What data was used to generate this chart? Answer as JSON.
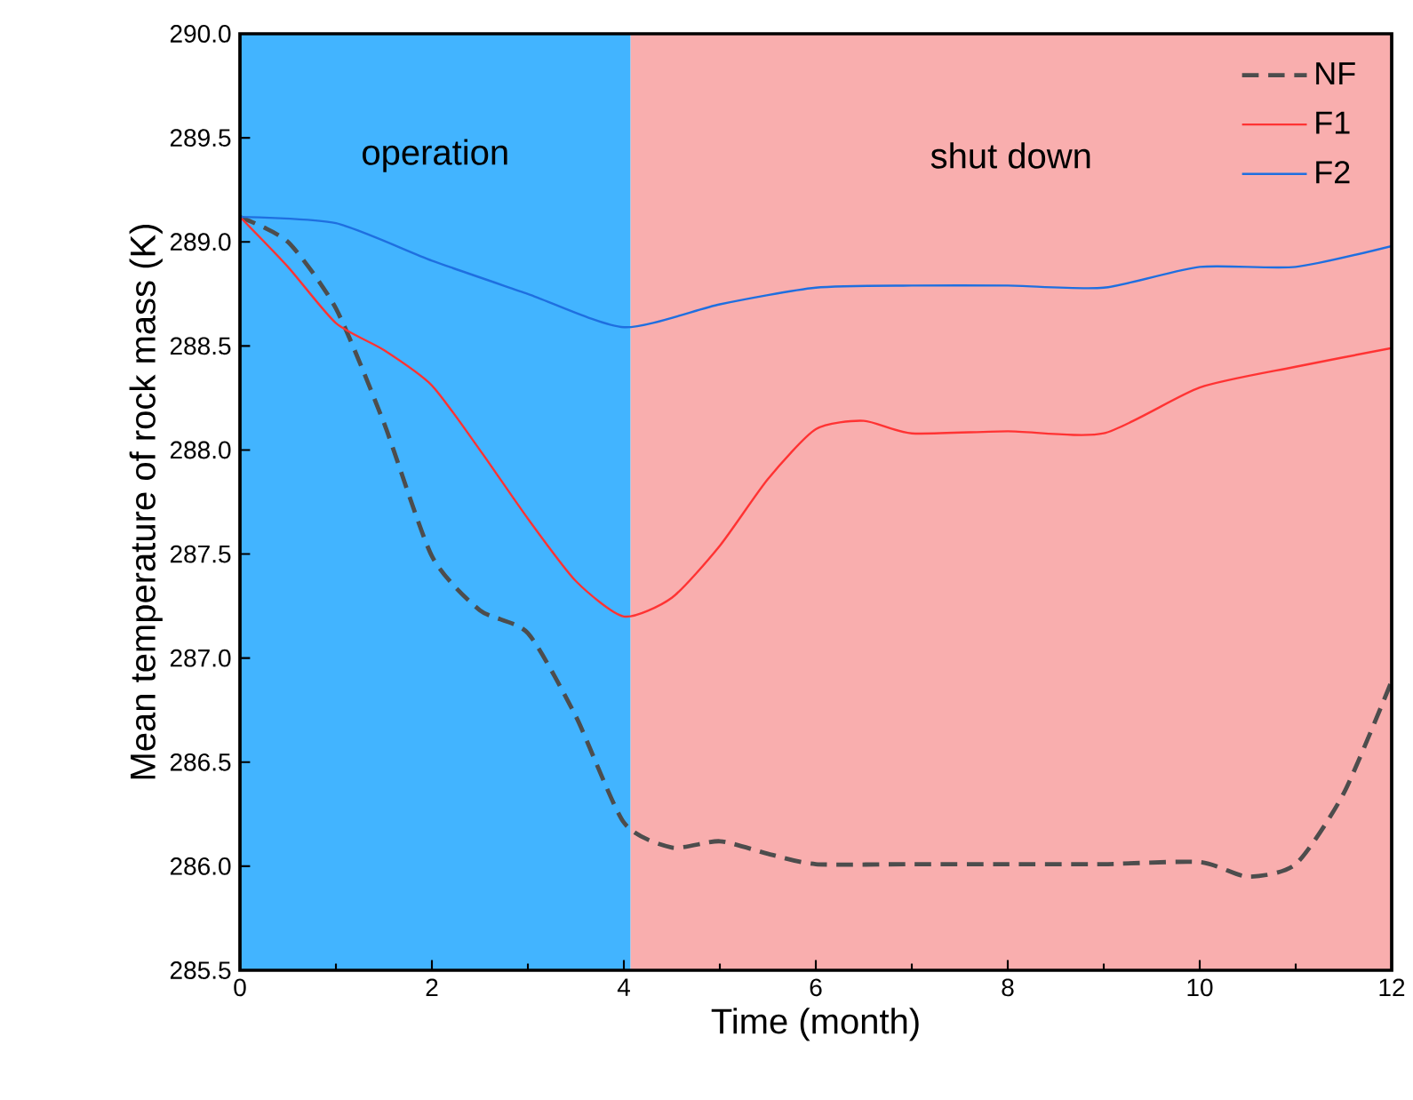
{
  "chart_data": {
    "type": "line",
    "xlabel": "Time (month)",
    "ylabel": "Mean temperature of rock mass (K)",
    "xlim": [
      0,
      12
    ],
    "ylim": [
      285.5,
      290.0
    ],
    "xticks": [
      0,
      2,
      4,
      6,
      8,
      10,
      12
    ],
    "yticks": [
      285.5,
      {
        "value": 286,
        "label": "286.0"
      },
      286.5,
      {
        "value": 287,
        "label": "287.0"
      },
      287.5,
      {
        "value": 288,
        "label": "288.0"
      },
      288.5,
      {
        "value": 289,
        "label": "289.0"
      },
      289.5,
      {
        "value": 290,
        "label": "290.0"
      }
    ],
    "legend": "top right",
    "bands": [
      {
        "axis": "x",
        "from": 0,
        "to": 4.07,
        "label": "operation",
        "color": "#42b4ff"
      },
      {
        "axis": "x",
        "from": 4.07,
        "to": 12,
        "label": "shut down",
        "color": "#f9aeae"
      }
    ],
    "series": [
      {
        "name": "NF",
        "color": "#4d4d4d",
        "line_style": "dashed",
        "x": [
          0,
          0.5,
          1,
          1.5,
          2,
          2.5,
          3,
          3.5,
          4,
          4.5,
          5,
          5.5,
          6,
          7,
          8,
          9,
          10,
          10.5,
          11,
          11.5,
          12
        ],
        "values": [
          289.12,
          289.0,
          288.68,
          288.13,
          287.49,
          287.23,
          287.12,
          286.72,
          286.21,
          286.09,
          286.12,
          286.06,
          286.01,
          286.01,
          286.01,
          286.01,
          286.02,
          285.95,
          286.01,
          286.35,
          286.89
        ]
      },
      {
        "name": "F1",
        "color": "#ff3333",
        "line_style": "solid",
        "x": [
          0,
          0.5,
          1,
          1.5,
          2,
          2.5,
          3,
          3.5,
          4,
          4.5,
          5,
          5.5,
          6,
          6.5,
          7,
          8,
          9,
          10,
          11,
          12
        ],
        "values": [
          289.12,
          288.88,
          288.61,
          288.48,
          288.31,
          288.0,
          287.67,
          287.37,
          287.2,
          287.29,
          287.54,
          287.86,
          288.1,
          288.14,
          288.08,
          288.09,
          288.08,
          288.3,
          288.4,
          288.49
        ]
      },
      {
        "name": "F2",
        "color": "#1f6fe0",
        "line_style": "solid",
        "x": [
          0,
          1,
          2,
          3,
          4,
          5,
          6,
          7,
          8,
          9,
          10,
          11,
          12
        ],
        "values": [
          289.12,
          289.09,
          288.91,
          288.75,
          288.59,
          288.7,
          288.78,
          288.79,
          288.79,
          288.78,
          288.88,
          288.88,
          288.98
        ]
      }
    ]
  }
}
